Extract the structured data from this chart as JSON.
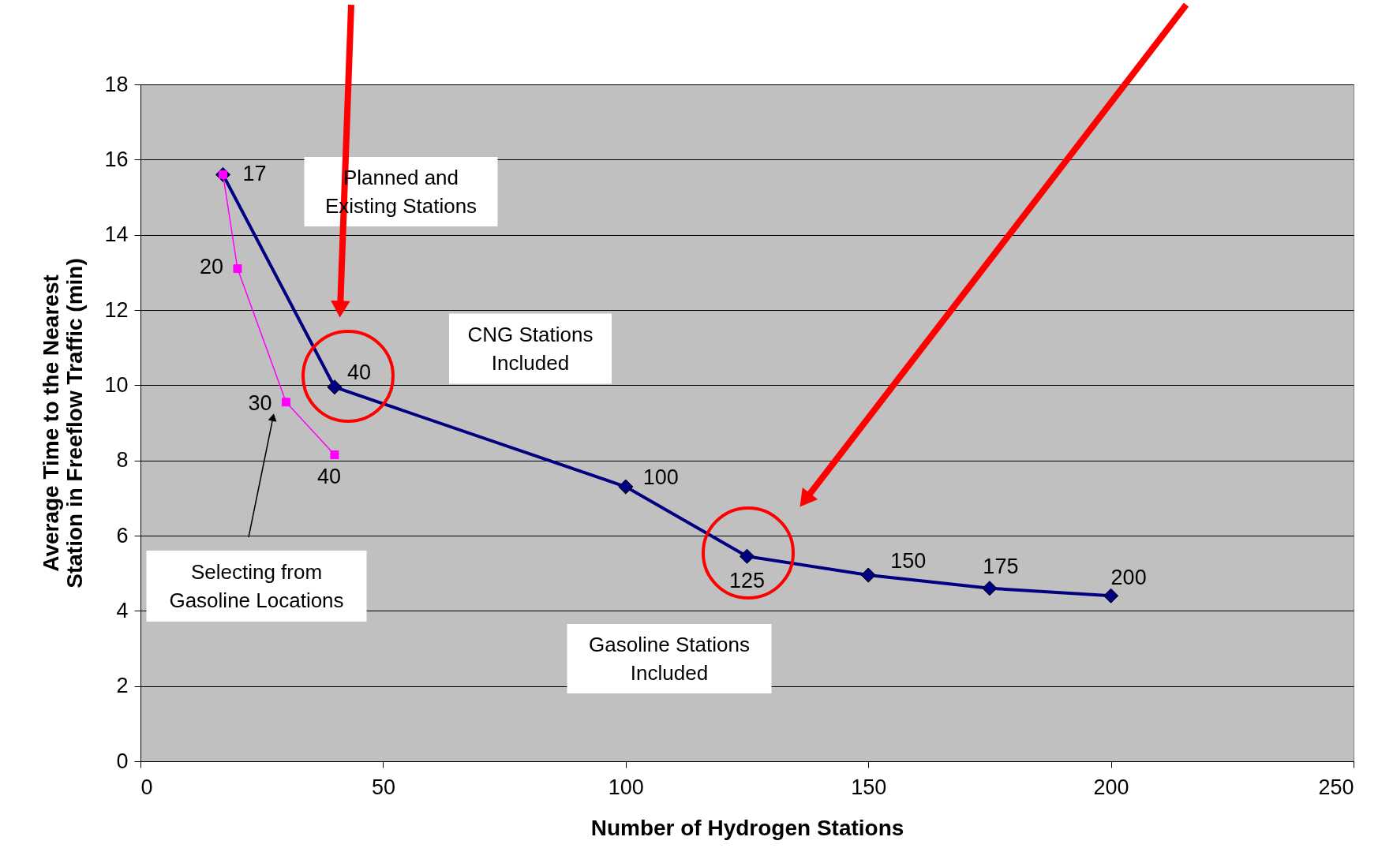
{
  "chart_data": {
    "type": "line",
    "xlabel": "Number of Hydrogen Stations",
    "ylabel": "Average Time to the Nearest Station in Freeflow Traffic (min)",
    "xlim": [
      0,
      250
    ],
    "xticks": [
      0,
      50,
      100,
      150,
      200,
      250
    ],
    "ylim": [
      0,
      18
    ],
    "yticks": [
      0,
      2,
      4,
      6,
      8,
      10,
      12,
      14,
      16,
      18
    ],
    "grid": "y",
    "series": [
      {
        "x": [
          17,
          40,
          100,
          125,
          150,
          175,
          200
        ],
        "values": [
          15.6,
          9.95,
          7.3,
          5.45,
          4.95,
          4.6,
          4.4
        ],
        "color": "#000080",
        "marker": "diamond"
      },
      {
        "x": [
          17,
          20,
          30,
          40
        ],
        "values": [
          15.6,
          13.1,
          9.55,
          8.15
        ],
        "color": "#ff00ff",
        "marker": "square"
      }
    ],
    "annotations": [
      "Planned and\nExisting Stations",
      "CNG Stations\nIncluded",
      "Selecting from\nGasoline Locations",
      "Gasoline Stations\nIncluded",
      {
        "text": "17",
        "x": 17,
        "y": 15.6
      },
      {
        "text": "40",
        "x": 40,
        "y": 9.95
      },
      {
        "text": "100",
        "x": 100,
        "y": 7.3
      },
      {
        "text": "125",
        "x": 125,
        "y": 5.45
      },
      {
        "text": "150",
        "x": 150,
        "y": 4.95
      },
      {
        "text": "175",
        "x": 175,
        "y": 4.6
      },
      {
        "text": "200",
        "x": 200,
        "y": 4.4
      },
      {
        "text": "20",
        "x": 20,
        "y": 13.1
      },
      {
        "text": "30",
        "x": 30,
        "y": 9.55
      },
      {
        "text": "40",
        "x": 40,
        "y": 8.15
      }
    ]
  }
}
